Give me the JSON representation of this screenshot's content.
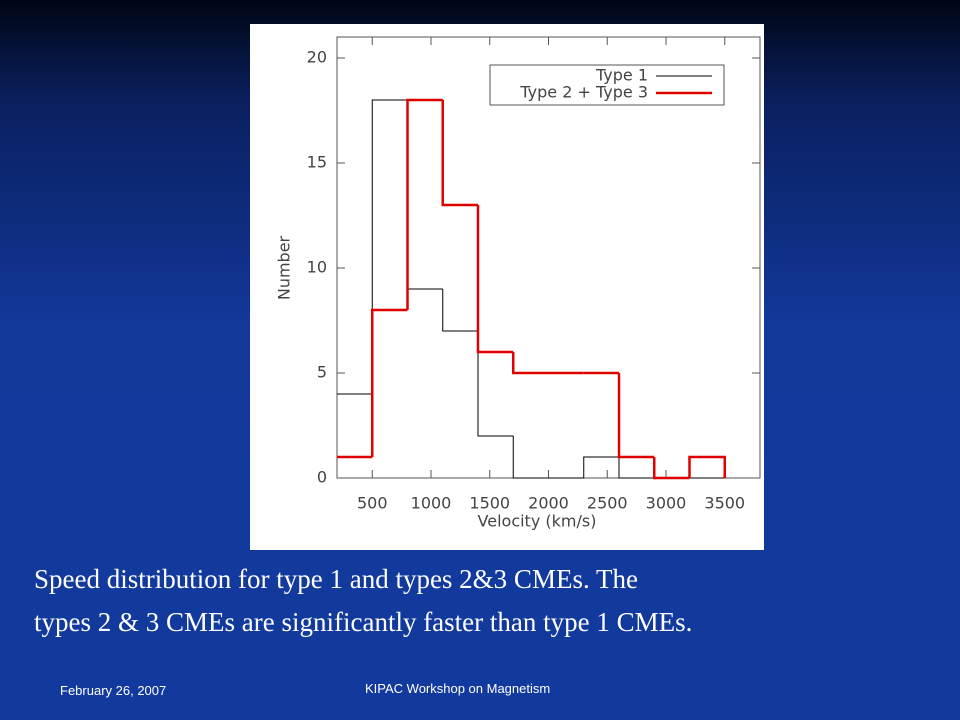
{
  "chart_data": {
    "type": "histogram",
    "xlabel": "Velocity (km/s)",
    "ylabel": "Number",
    "bins": [
      200,
      500,
      800,
      1100,
      1400,
      1700,
      2000,
      2300,
      2600,
      2900,
      3200,
      3500
    ],
    "series": [
      {
        "name": "Type 1",
        "color": "#000000",
        "values": [
          4,
          18,
          9,
          7,
          2,
          0,
          0,
          1,
          0,
          0,
          0
        ]
      },
      {
        "name": "Type 2 + Type 3",
        "color": "#e00000",
        "values": [
          1,
          8,
          18,
          13,
          6,
          5,
          5,
          5,
          1,
          0,
          1
        ]
      }
    ],
    "xlim": [
      200,
      3800
    ],
    "xticks": [
      500,
      1000,
      1500,
      2000,
      2500,
      3000,
      3500
    ],
    "ylim": [
      0,
      21
    ],
    "yticks": [
      0,
      5,
      10,
      15,
      20
    ],
    "legend": "upper right"
  },
  "caption": [
    "Speed distribution for type 1 and types 2&3 CMEs. The",
    "types 2 & 3 CMEs are significantly faster than type 1 CMEs."
  ],
  "footer": {
    "date": "February 26, 2007",
    "event": "KIPAC Workshop on Magnetism"
  }
}
